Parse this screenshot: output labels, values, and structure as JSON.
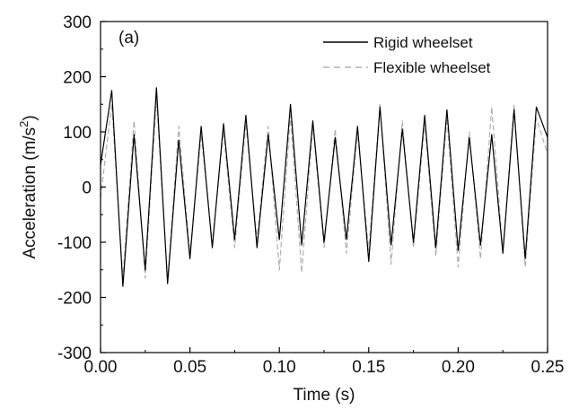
{
  "chart_data": {
    "type": "line",
    "panel_label": "(a)",
    "xlabel": "Time (s)",
    "ylabel_main": "Acceleration (m/s",
    "ylabel_sup": "2",
    "ylabel_tail": ")",
    "xlim": [
      0,
      0.25
    ],
    "ylim": [
      -300,
      300
    ],
    "xticks": [
      0.0,
      0.05,
      0.1,
      0.15,
      0.2,
      0.25
    ],
    "xtick_labels": [
      "0.00",
      "0.05",
      "0.10",
      "0.15",
      "0.20",
      "0.25"
    ],
    "yticks": [
      -300,
      -200,
      -100,
      0,
      100,
      200,
      300
    ],
    "ytick_labels": [
      "-300",
      "-200",
      "-100",
      "0",
      "100",
      "200",
      "300"
    ],
    "grid": false,
    "legend_position": "top-right",
    "series": [
      {
        "name": "Rigid wheelset",
        "color": "#000000",
        "style": "solid",
        "x": [
          0.0,
          0.00625,
          0.0125,
          0.01875,
          0.025,
          0.03125,
          0.0375,
          0.04375,
          0.05,
          0.05625,
          0.0625,
          0.06875,
          0.075,
          0.08125,
          0.0875,
          0.09375,
          0.1,
          0.10625,
          0.1125,
          0.11875,
          0.125,
          0.13125,
          0.1375,
          0.14375,
          0.15,
          0.15625,
          0.1625,
          0.16875,
          0.175,
          0.18125,
          0.1875,
          0.19375,
          0.2,
          0.20625,
          0.2125,
          0.21875,
          0.225,
          0.23125,
          0.2375,
          0.24375,
          0.25
        ],
        "y": [
          40,
          175,
          -180,
          95,
          -150,
          180,
          -175,
          85,
          -130,
          110,
          -110,
          115,
          -95,
          130,
          -110,
          95,
          -95,
          150,
          -105,
          120,
          -100,
          90,
          -95,
          110,
          -135,
          145,
          -105,
          105,
          -100,
          130,
          -110,
          140,
          -115,
          90,
          -105,
          95,
          -120,
          140,
          -130,
          145,
          90
        ]
      },
      {
        "name": "Flexible wheelset",
        "color": "#b0b0b0",
        "style": "dashed",
        "x": [
          0.0,
          0.00625,
          0.0125,
          0.01875,
          0.025,
          0.03125,
          0.0375,
          0.04375,
          0.05,
          0.05625,
          0.0625,
          0.06875,
          0.075,
          0.08125,
          0.0875,
          0.09375,
          0.1,
          0.10625,
          0.1125,
          0.11875,
          0.125,
          0.13125,
          0.1375,
          0.14375,
          0.15,
          0.15625,
          0.1625,
          0.16875,
          0.175,
          0.18125,
          0.1875,
          0.19375,
          0.2,
          0.20625,
          0.2125,
          0.21875,
          0.225,
          0.23125,
          0.2375,
          0.24375,
          0.25
        ],
        "y": [
          -20,
          150,
          -165,
          120,
          -165,
          160,
          -170,
          110,
          -120,
          95,
          -100,
          100,
          -110,
          115,
          -95,
          110,
          -150,
          130,
          -155,
          110,
          -110,
          105,
          -120,
          100,
          -115,
          150,
          -140,
          120,
          -110,
          115,
          -125,
          125,
          -145,
          100,
          -130,
          145,
          -115,
          150,
          -145,
          125,
          60
        ]
      }
    ]
  }
}
